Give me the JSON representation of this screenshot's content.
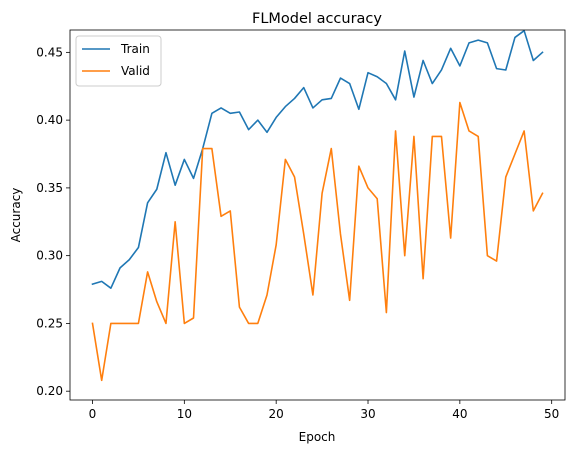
{
  "chart_data": {
    "type": "line",
    "title": "FLModel accuracy",
    "xlabel": "Epoch",
    "ylabel": "Accuracy",
    "xlim": [
      -2.45,
      51.45
    ],
    "ylim": [
      0.1935,
      0.4665
    ],
    "xticks": [
      0,
      10,
      20,
      30,
      40,
      50
    ],
    "yticks": [
      0.2,
      0.25,
      0.3,
      0.35,
      0.4,
      0.45
    ],
    "ytick_labels": [
      "0.20",
      "0.25",
      "0.30",
      "0.35",
      "0.40",
      "0.45"
    ],
    "grid": false,
    "legend_position": "upper-left",
    "x": [
      0,
      1,
      2,
      3,
      4,
      5,
      6,
      7,
      8,
      9,
      10,
      11,
      12,
      13,
      14,
      15,
      16,
      17,
      18,
      19,
      20,
      21,
      22,
      23,
      24,
      25,
      26,
      27,
      28,
      29,
      30,
      31,
      32,
      33,
      34,
      35,
      36,
      37,
      38,
      39,
      40,
      41,
      42,
      43,
      44,
      45,
      46,
      47,
      48,
      49
    ],
    "series": [
      {
        "name": "Train",
        "color": "#1f77b4",
        "values": [
          0.279,
          0.281,
          0.276,
          0.291,
          0.297,
          0.306,
          0.339,
          0.349,
          0.376,
          0.352,
          0.371,
          0.357,
          0.379,
          0.405,
          0.409,
          0.405,
          0.406,
          0.393,
          0.4,
          0.391,
          0.402,
          0.41,
          0.416,
          0.424,
          0.409,
          0.415,
          0.416,
          0.431,
          0.427,
          0.408,
          0.435,
          0.432,
          0.427,
          0.415,
          0.451,
          0.417,
          0.444,
          0.427,
          0.437,
          0.453,
          0.44,
          0.457,
          0.459,
          0.457,
          0.438,
          0.437,
          0.461,
          0.466,
          0.444,
          0.45
        ]
      },
      {
        "name": "Valid",
        "color": "#ff7f0e",
        "values": [
          0.25,
          0.208,
          0.25,
          0.25,
          0.25,
          0.25,
          0.288,
          0.266,
          0.25,
          0.325,
          0.25,
          0.254,
          0.379,
          0.379,
          0.329,
          0.333,
          0.262,
          0.25,
          0.25,
          0.271,
          0.308,
          0.371,
          0.358,
          0.316,
          0.271,
          0.346,
          0.379,
          0.316,
          0.267,
          0.366,
          0.35,
          0.342,
          0.258,
          0.392,
          0.3,
          0.388,
          0.283,
          0.388,
          0.388,
          0.313,
          0.413,
          0.392,
          0.388,
          0.3,
          0.296,
          0.358,
          0.375,
          0.392,
          0.333,
          0.346
        ]
      }
    ]
  }
}
